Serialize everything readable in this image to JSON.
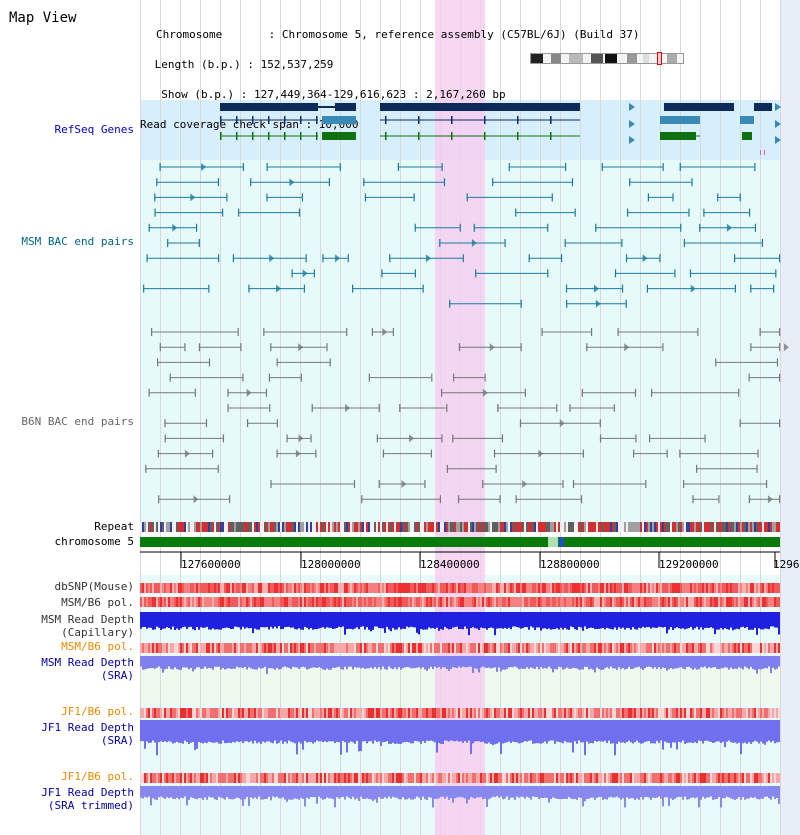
{
  "header": {
    "title": "Map View",
    "info_lines": [
      "Chromosome       : Chromosome 5, reference assembly (C57BL/6J) (Build 37)",
      " Length (b.p.) : 152,537,259",
      "  Show (b.p.) : 127,449,364-129,616,623 : 2,167,260 bp",
      "Read coverage check span : 10,000"
    ]
  },
  "tracks": {
    "refseq": {
      "label": "RefSeq Genes",
      "color": "#0000cc"
    },
    "msm_bac": {
      "label": "MSM BAC end pairs",
      "color": "#006680"
    },
    "b6n_bac": {
      "label": "B6N BAC end pairs",
      "color": "#666666"
    },
    "repeat": {
      "label": "Repeat"
    },
    "chromosome": {
      "label": "chromosome 5"
    },
    "dbsnp": {
      "label": "dbSNP(Mouse)",
      "color": "#333333"
    },
    "msm_b6_pol": {
      "label": "MSM/B6 pol.",
      "color": "#333333"
    },
    "msm_depth_cap": {
      "label": "MSM Read Depth\n(Capillary)",
      "color": "#333333"
    },
    "msm_b6_pol_sra": {
      "label": "MSM/B6 pol.",
      "color": "#ee8800"
    },
    "msm_depth_sra": {
      "label": "MSM Read Depth\n(SRA)",
      "color": "#0000aa"
    },
    "jf1_b6_pol": {
      "label": "JF1/B6 pol.",
      "color": "#ee8800"
    },
    "jf1_depth_sra": {
      "label": "JF1 Read Depth\n(SRA)",
      "color": "#0000aa"
    },
    "jf1_b6_pol2": {
      "label": "JF1/B6 pol.",
      "color": "#ee8800"
    },
    "jf1_depth_trim": {
      "label": "JF1 Read Depth\n(SRA trimmed)",
      "color": "#0000aa"
    }
  },
  "axis": {
    "ticks": [
      "127600000",
      "128000000",
      "128400000",
      "128800000",
      "129200000",
      "1296"
    ]
  },
  "colors": {
    "highlight": "#f8d8f4",
    "refseq_bg": "#d8f0fc",
    "lane_bg": "#e0f8f8",
    "gene_dark": "#0c2a5c",
    "gene_mid": "#3a8ab8",
    "gene_green": "#107010",
    "chrom_green": "#0a7a0a",
    "snp_red": "#e84040",
    "depth_blue": "#2020e0",
    "depth_light": "#8888ee"
  }
}
